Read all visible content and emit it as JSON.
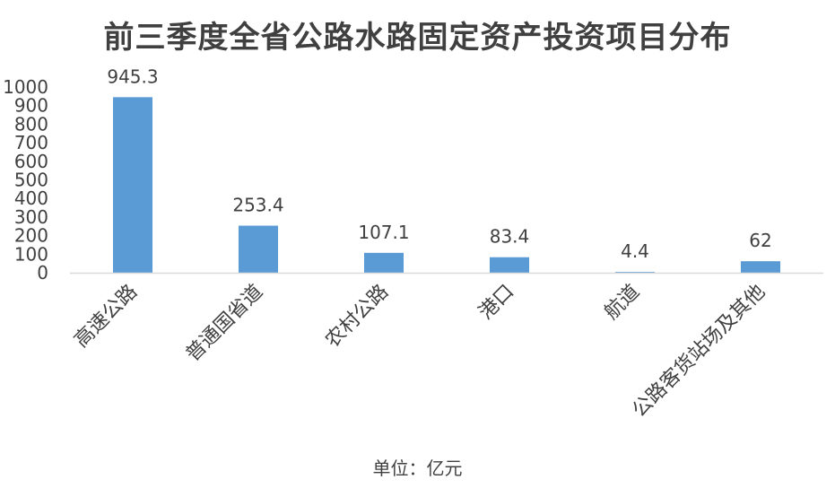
{
  "chart_data": {
    "type": "bar",
    "title": "前三季度全省公路水路固定资产投资项目分布",
    "categories": [
      "高速公路",
      "普通国省道",
      "农村公路",
      "港口",
      "航道",
      "公路客货站场及其他"
    ],
    "series": [
      {
        "values": [
          945.3,
          253.4,
          107.1,
          83.4,
          4.4,
          62
        ],
        "labels": [
          "945.3",
          "253.4",
          "107.1",
          "83.4",
          "4.4",
          "62"
        ]
      }
    ],
    "ylim": [
      0,
      1000
    ],
    "yticks": [
      0,
      100,
      200,
      300,
      400,
      500,
      600,
      700,
      800,
      900,
      1000
    ],
    "ytick_labels": [
      "0",
      "100",
      "200",
      "300",
      "400",
      "500",
      "600",
      "700",
      "800",
      "900",
      "1000"
    ],
    "unit_label": "单位：亿元",
    "grid": false,
    "legend": "none",
    "colors": {
      "bar": "#5b9bd5",
      "axis": "#d9d9d9",
      "text": "#404040"
    }
  }
}
